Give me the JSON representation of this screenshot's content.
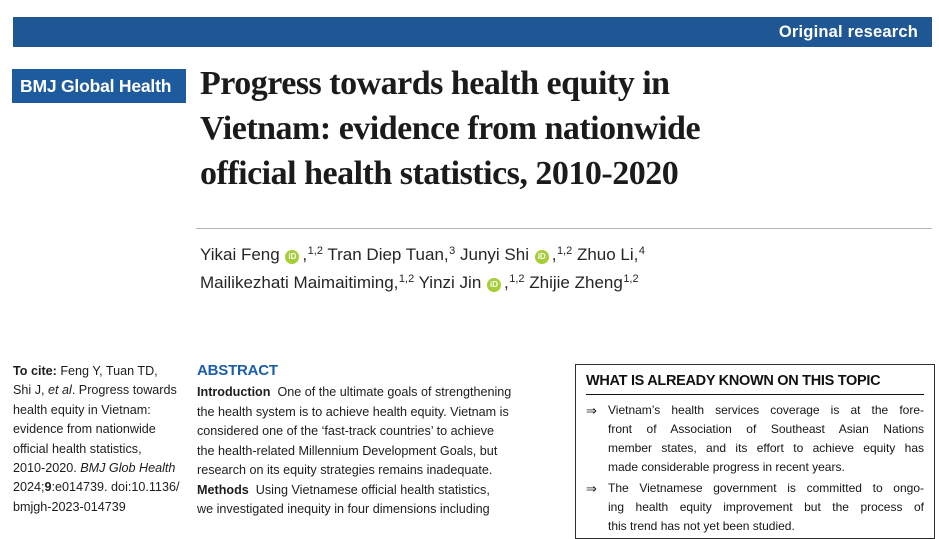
{
  "colors": {
    "banner_blue": "#1f5795",
    "logo_blue": "#1e5b9e",
    "abstract_heading_blue": "#1c5fa8",
    "orcid_green": "#a6ce39"
  },
  "icons": {
    "orcid_label": "iD"
  },
  "banner": {
    "label": "Original research"
  },
  "journal": {
    "name": "BMJ Global Health"
  },
  "article": {
    "title_lines": [
      "Progress towards health equity in",
      "Vietnam: evidence from nationwide",
      "official health statistics, 2010-2020"
    ],
    "authors_rich": [
      {
        "t": "Yikai Feng "
      },
      {
        "orcid": true
      },
      {
        "t": ","
      },
      {
        "t": "1,2",
        "sup": true
      },
      {
        "t": " Tran Diep Tuan,"
      },
      {
        "t": "3",
        "sup": true
      },
      {
        "t": " Junyi Shi "
      },
      {
        "orcid": true
      },
      {
        "t": ","
      },
      {
        "t": "1,2",
        "sup": true
      },
      {
        "t": " Zhuo Li,"
      },
      {
        "t": "4",
        "sup": true
      },
      {
        "br": true
      },
      {
        "t": "Mailikezhati Maimaitiming,"
      },
      {
        "t": "1,2",
        "sup": true
      },
      {
        "t": " Yinzi Jin "
      },
      {
        "orcid": true
      },
      {
        "t": ","
      },
      {
        "t": "1,2",
        "sup": true
      },
      {
        "t": " Zhijie Zheng"
      },
      {
        "t": "1,2",
        "sup": true
      }
    ]
  },
  "citation_rich": [
    {
      "t": "To cite:",
      "b": true
    },
    {
      "t": " Feng Y, Tuan TD,"
    },
    {
      "br": true
    },
    {
      "t": "Shi J, "
    },
    {
      "t": "et al",
      "i": true
    },
    {
      "t": ". Progress towards"
    },
    {
      "br": true
    },
    {
      "t": "health equity in Vietnam:"
    },
    {
      "br": true
    },
    {
      "t": "evidence from nationwide"
    },
    {
      "br": true
    },
    {
      "t": "official health statistics,"
    },
    {
      "br": true
    },
    {
      "t": "2010-2020. "
    },
    {
      "t": "BMJ Glob Health",
      "i": true
    },
    {
      "br": true
    },
    {
      "t": "2024;"
    },
    {
      "t": "9",
      "b": true
    },
    {
      "t": ":e014739. doi:10.1136/"
    },
    {
      "br": true
    },
    {
      "t": "bmjgh-2023-014739"
    }
  ],
  "abstract": {
    "heading": "ABSTRACT",
    "body_rich": [
      {
        "t": "Introduction",
        "b": true
      },
      {
        "t": "  One of the ultimate goals of strengthening"
      },
      {
        "br": true
      },
      {
        "t": "the health system is to achieve health equity. Vietnam is"
      },
      {
        "br": true
      },
      {
        "t": "considered one of the ‘fast-track countries’ to achieve"
      },
      {
        "br": true
      },
      {
        "t": "the health-related Millennium Development Goals, but"
      },
      {
        "br": true
      },
      {
        "t": "research on its equity strategies remains inadequate."
      },
      {
        "br": true
      },
      {
        "t": "Methods",
        "b": true
      },
      {
        "t": "  Using Vietnamese official health statistics,"
      },
      {
        "br": true
      },
      {
        "t": "we investigated inequity in four dimensions including"
      }
    ]
  },
  "known_box": {
    "heading": "WHAT IS ALREADY KNOWN ON THIS TOPIC",
    "arrow": "⇒",
    "bullet1_lines": [
      "Vietnam’s health services coverage is at the fore-",
      "front of Association of Southeast Asian Nations",
      "member states, and its effort to achieve equity has",
      "made considerable progress in recent years."
    ],
    "bullet2_lines": [
      "The Vietnamese government is committed to ongo-",
      "ing health equity improvement but the process of",
      "this trend has not yet been studied."
    ]
  }
}
